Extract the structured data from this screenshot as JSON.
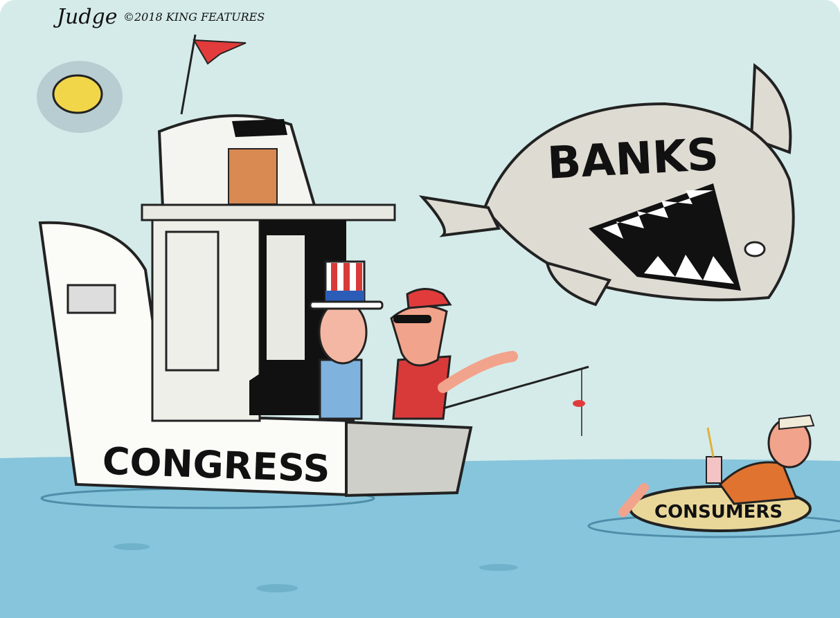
{
  "signature": {
    "artist": "Judge",
    "copyright": "©2018 KING FEATURES"
  },
  "labels": {
    "shark": "BANKS",
    "boat": "CONGRESS",
    "raft": "CONSUMERS"
  }
}
